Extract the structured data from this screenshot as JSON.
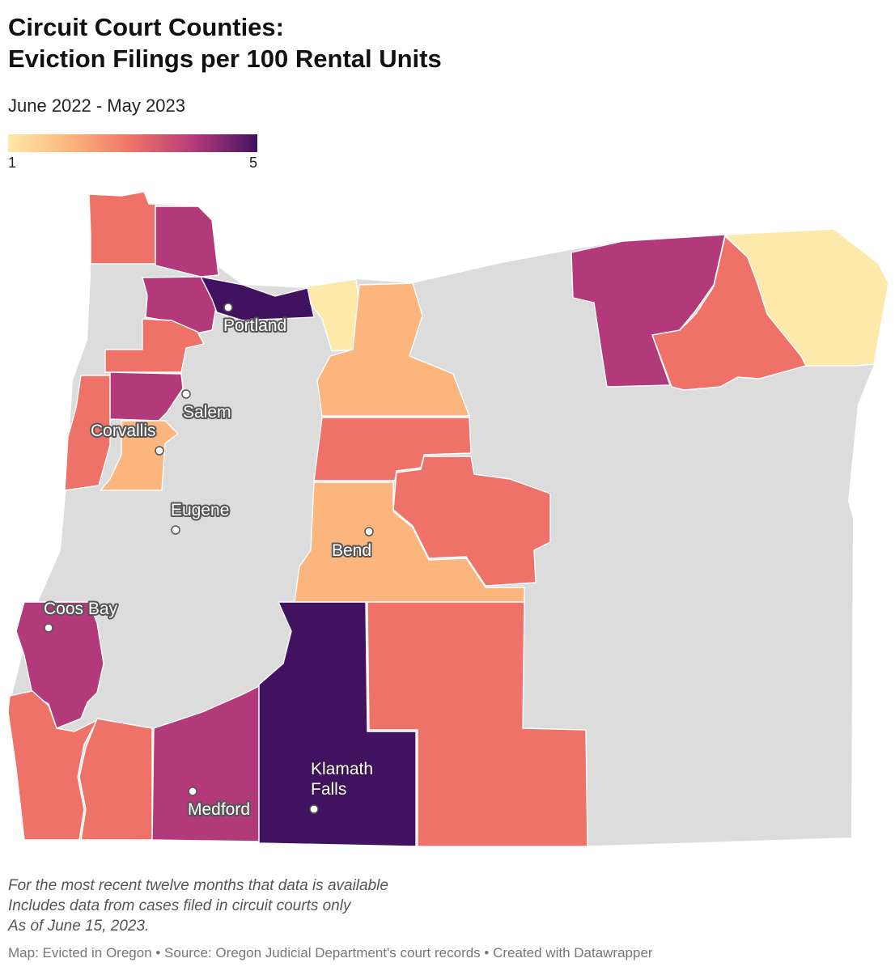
{
  "header": {
    "title_line1": "Circuit Court Counties:",
    "title_line2": "Eviction Filings per 100 Rental Units",
    "subtitle": "June 2022 - May 2023"
  },
  "legend": {
    "min_label": "1",
    "max_label": "5",
    "colors": [
      "#fde9a9",
      "#fbb57d",
      "#ee7268",
      "#b33a7a",
      "#41125f"
    ]
  },
  "map": {
    "no_data_color": "#dcdcdc",
    "cities": [
      {
        "name": "Portland"
      },
      {
        "name": "Salem"
      },
      {
        "name": "Corvallis"
      },
      {
        "name": "Eugene"
      },
      {
        "name": "Bend"
      },
      {
        "name": "Coos Bay"
      },
      {
        "name": "Medford"
      },
      {
        "name": "Klamath Falls",
        "lines": [
          "Klamath",
          "Falls"
        ]
      }
    ]
  },
  "notes": [
    "For the most recent twelve months that data is available",
    "Includes data from cases filed in circuit courts only",
    "As of June 15, 2023."
  ],
  "footer": "Map: Evicted in Oregon • Source: Oregon Judicial Department's court records • Created with Datawrapper"
}
